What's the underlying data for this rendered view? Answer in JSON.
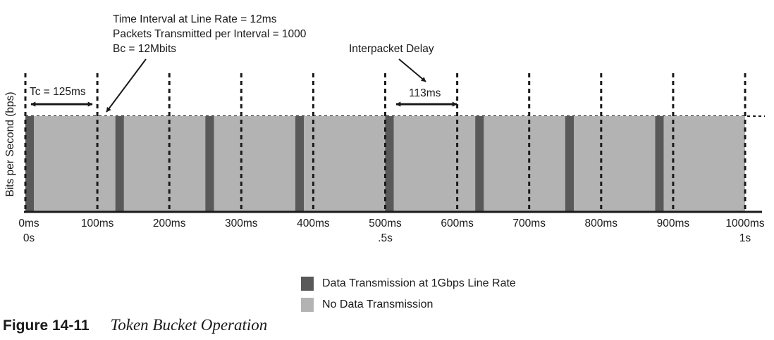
{
  "colors": {
    "transmission": "#595959",
    "idle": "#b3b3b3",
    "ink": "#1a1a1a"
  },
  "annotations": {
    "line_rate": [
      "Time Interval at Line Rate = 12ms",
      "Packets Transmitted per Interval = 1000",
      "Bc = 12Mbits"
    ],
    "interpacket_delay": "Interpacket Delay",
    "tc": "Tc = 125ms",
    "gap": "113ms",
    "y_axis": "Bits per Second (bps)"
  },
  "ticks": [
    {
      "label": "0ms",
      "sub": "0s"
    },
    {
      "label": "100ms",
      "sub": ""
    },
    {
      "label": "200ms",
      "sub": ""
    },
    {
      "label": "300ms",
      "sub": ""
    },
    {
      "label": "400ms",
      "sub": ""
    },
    {
      "label": "500ms",
      "sub": ".5s"
    },
    {
      "label": "600ms",
      "sub": ""
    },
    {
      "label": "700ms",
      "sub": ""
    },
    {
      "label": "800ms",
      "sub": ""
    },
    {
      "label": "900ms",
      "sub": ""
    },
    {
      "label": "1000ms",
      "sub": "1s"
    }
  ],
  "bursts": [
    {
      "start_ms": 0,
      "transmit_ms": 12,
      "idle_ms": 113
    },
    {
      "start_ms": 125,
      "transmit_ms": 12,
      "idle_ms": 113
    },
    {
      "start_ms": 250,
      "transmit_ms": 12,
      "idle_ms": 113
    },
    {
      "start_ms": 375,
      "transmit_ms": 12,
      "idle_ms": 113
    },
    {
      "start_ms": 500,
      "transmit_ms": 12,
      "idle_ms": 113
    },
    {
      "start_ms": 625,
      "transmit_ms": 12,
      "idle_ms": 113
    },
    {
      "start_ms": 750,
      "transmit_ms": 12,
      "idle_ms": 113
    },
    {
      "start_ms": 875,
      "transmit_ms": 12,
      "idle_ms": 113
    }
  ],
  "legend": [
    {
      "label": "Data Transmission at 1Gbps Line Rate",
      "color": "#595959"
    },
    {
      "label": "No Data Transmission",
      "color": "#b3b3b3"
    }
  ],
  "caption": {
    "figure": "Figure 14-11",
    "title": "Token Bucket Operation"
  }
}
